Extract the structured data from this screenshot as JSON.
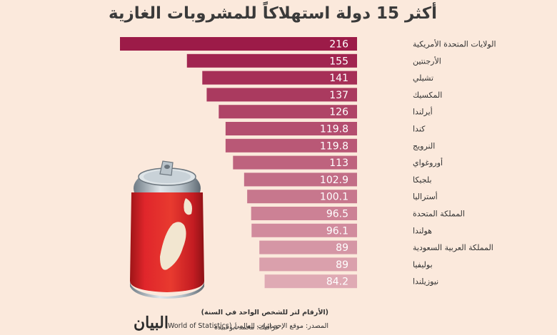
{
  "title": "أكثر 15 دولة استهلاكاً للمشروبات الغازية",
  "footer": {
    "units": "(الأرقام لتر للشخص الواحد في السنة)",
    "source": "المصدر: موقع الإحصائيات العالمي (World of Statistics)",
    "credit": "غرافيك: محمد أبوعبيدة",
    "logo": "البيان"
  },
  "colors": {
    "bar_top": "#9c1b48",
    "bar_bottom": "#dfaab4",
    "background": "#fbe9dc",
    "can_red": "#e0262b"
  },
  "chart_data": {
    "type": "bar",
    "orientation": "horizontal",
    "title": "أكثر 15 دولة استهلاكاً للمشروبات الغازية",
    "categories": [
      "الولايات المتحدة الأمريكية",
      "الأرجنتين",
      "تشيلي",
      "المكسيك",
      "أيرلندا",
      "كندا",
      "النرويج",
      "أوروغواي",
      "بلجيكا",
      "أستراليا",
      "المملكة المتحدة",
      "هولندا",
      "المملكة العربية السعودية",
      "بوليفيا",
      "نيوزيلندا"
    ],
    "values": [
      216,
      155,
      141,
      137,
      126,
      119.8,
      119.8,
      113,
      102.9,
      100.1,
      96.5,
      96.1,
      89,
      89,
      84.2
    ],
    "value_labels": [
      "216",
      "155",
      "141",
      "137",
      "126",
      "119.8",
      "119.8",
      "113",
      "102.9",
      "100.1",
      "96.5",
      "96.1",
      "89",
      "89",
      "84.2"
    ],
    "unit": "(الأرقام لتر للشخص الواحد في السنة)"
  }
}
